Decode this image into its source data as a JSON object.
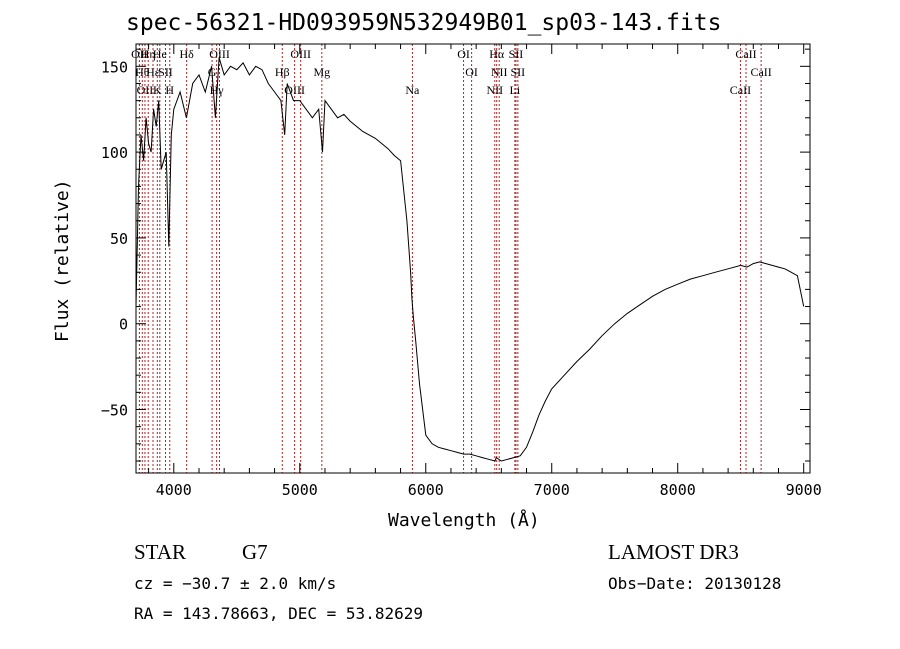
{
  "chart_data": {
    "type": "line",
    "title": "spec-56321-HD093959N532949B01_sp03-143.fits",
    "xlabel": "Wavelength (Å)",
    "ylabel": "Flux (relative)",
    "xlim": [
      3700,
      9050
    ],
    "ylim": [
      -87,
      163
    ],
    "x_ticks": [
      4000,
      5000,
      6000,
      7000,
      8000,
      9000
    ],
    "y_ticks": [
      -50,
      0,
      50,
      100,
      150
    ],
    "x_tick_labels": [
      "4000",
      "5000",
      "6000",
      "7000",
      "8000",
      "9000"
    ],
    "y_tick_labels": [
      "−50",
      "0",
      "50",
      "100",
      "150"
    ],
    "series": [
      {
        "name": "spectrum",
        "color": "#000000",
        "x": [
          3700,
          3720,
          3740,
          3760,
          3780,
          3800,
          3820,
          3840,
          3860,
          3880,
          3900,
          3920,
          3940,
          3960,
          3980,
          4000,
          4050,
          4100,
          4150,
          4200,
          4250,
          4300,
          4330,
          4360,
          4400,
          4450,
          4500,
          4550,
          4600,
          4650,
          4700,
          4750,
          4800,
          4850,
          4880,
          4900,
          4950,
          5000,
          5050,
          5100,
          5150,
          5180,
          5200,
          5250,
          5300,
          5350,
          5400,
          5450,
          5500,
          5550,
          5600,
          5650,
          5700,
          5750,
          5800,
          5850,
          5880,
          5890,
          5900,
          5920,
          5950,
          6000,
          6050,
          6100,
          6150,
          6200,
          6250,
          6300,
          6350,
          6400,
          6450,
          6500,
          6550,
          6560,
          6600,
          6650,
          6700,
          6750,
          6800,
          6850,
          6900,
          6950,
          7000,
          7100,
          7200,
          7300,
          7400,
          7500,
          7600,
          7700,
          7800,
          7900,
          8000,
          8100,
          8200,
          8300,
          8400,
          8500,
          8550,
          8600,
          8650,
          8700,
          8750,
          8800,
          8850,
          8900,
          8950,
          9000
        ],
        "y": [
          10,
          80,
          110,
          95,
          120,
          105,
          100,
          125,
          115,
          130,
          90,
          95,
          100,
          45,
          110,
          125,
          135,
          120,
          140,
          145,
          135,
          150,
          120,
          155,
          145,
          150,
          148,
          152,
          145,
          150,
          148,
          140,
          135,
          130,
          110,
          140,
          130,
          130,
          125,
          120,
          125,
          100,
          130,
          125,
          120,
          122,
          118,
          115,
          112,
          110,
          108,
          105,
          102,
          98,
          95,
          60,
          30,
          15,
          5,
          -10,
          -35,
          -65,
          -70,
          -72,
          -73,
          -74,
          -75,
          -76,
          -76,
          -77,
          -78,
          -79,
          -80,
          -78,
          -80,
          -79,
          -78,
          -77,
          -72,
          -63,
          -53,
          -45,
          -38,
          -30,
          -22,
          -15,
          -7,
          0,
          6,
          11,
          16,
          20,
          23,
          26,
          28,
          30,
          32,
          34,
          33,
          35,
          36,
          35,
          34,
          33,
          32,
          30,
          28,
          10
        ]
      }
    ],
    "line_markers": [
      {
        "x": 3727,
        "label": "OII"
      },
      {
        "x": 3750,
        "label": "Hθ"
      },
      {
        "x": 3771,
        "label": "OII"
      },
      {
        "x": 3797,
        "label": "Hη"
      },
      {
        "x": 3835,
        "label": "Hε"
      },
      {
        "x": 3869,
        "label": "K"
      },
      {
        "x": 3889,
        "label": "He"
      },
      {
        "x": 3934,
        "label": "SII"
      },
      {
        "x": 3968,
        "label": "H"
      },
      {
        "x": 4102,
        "label": "Hδ"
      },
      {
        "x": 4304,
        "label": "G"
      },
      {
        "x": 4340,
        "label": "Hγ"
      },
      {
        "x": 4363,
        "label": "OIII"
      },
      {
        "x": 4861,
        "label": "Hβ"
      },
      {
        "x": 4959,
        "label": "OIII"
      },
      {
        "x": 5007,
        "label": "OIII"
      },
      {
        "x": 5175,
        "label": "Mg"
      },
      {
        "x": 5894,
        "label": "Na"
      },
      {
        "x": 6300,
        "label": "OI"
      },
      {
        "x": 6364,
        "label": "OI"
      },
      {
        "x": 6548,
        "label": "NII"
      },
      {
        "x": 6563,
        "label": "Hα"
      },
      {
        "x": 6583,
        "label": "NII"
      },
      {
        "x": 6707,
        "label": "Li"
      },
      {
        "x": 6716,
        "label": "SII"
      },
      {
        "x": 6731,
        "label": "SII"
      },
      {
        "x": 8498,
        "label": "CaII"
      },
      {
        "x": 8542,
        "label": "CaII"
      },
      {
        "x": 8662,
        "label": "CaII"
      }
    ],
    "marker_color": "#b22222",
    "frame_color": "#000000"
  },
  "info": {
    "object_class": "STAR",
    "subclass": "G7",
    "survey": "LAMOST DR3",
    "redshift_text": "cz = −30.7 ± 2.0 km/s",
    "obs_date": "Obs−Date: 20130128",
    "coords": "RA = 143.78663, DEC =  53.82629"
  }
}
